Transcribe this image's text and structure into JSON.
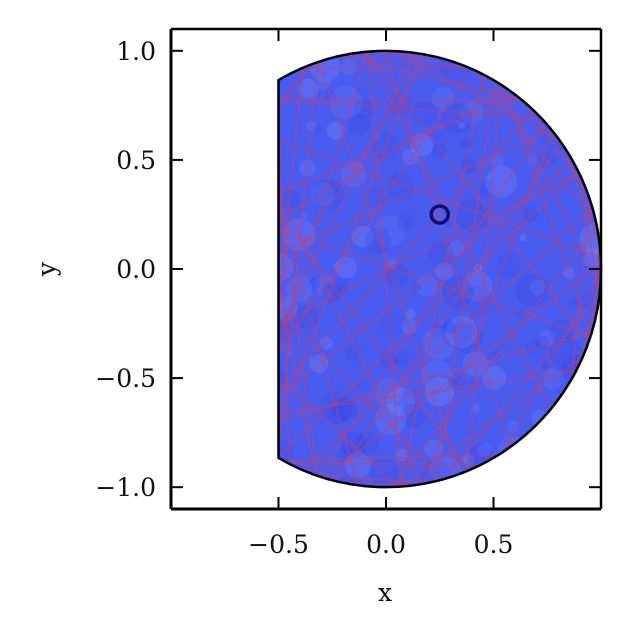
{
  "chart_data": {
    "type": "scatter",
    "title": "",
    "xlabel": "x",
    "ylabel": "y",
    "xlim": [
      -1.0,
      1.0
    ],
    "ylim": [
      -1.1,
      1.1
    ],
    "x_ticks": [
      -0.5,
      0.0,
      0.5
    ],
    "x_tick_labels": [
      "−0.5",
      "0.0",
      "0.5"
    ],
    "y_ticks": [
      -1.0,
      -0.5,
      0.0,
      0.5,
      1.0
    ],
    "y_tick_labels": [
      "−1.0",
      "−0.5",
      "0.0",
      "0.5",
      "1.0"
    ],
    "grid": false,
    "region": {
      "shape": "unit disk truncated at x = -0.5",
      "radius": 1.0,
      "cut_x": -0.5,
      "fill_color": "#4a5cf0",
      "edge_color": "#000000"
    },
    "start_point": {
      "x": 0.25,
      "y": 0.25,
      "color": "#10106a"
    },
    "trajectory": {
      "color": "#c0407a",
      "segments": 90
    }
  }
}
